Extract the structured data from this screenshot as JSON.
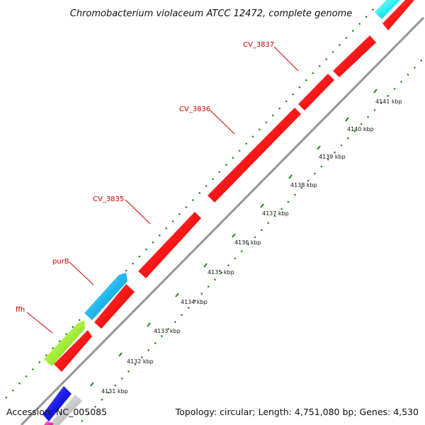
{
  "title": "Chromobacterium violaceum ATCC 12472, complete genome",
  "footer": {
    "accession": "Accession: NC_005085",
    "summary": "Topology: circular; Length: 4,751,080 bp; Genes: 4,530"
  },
  "colors": {
    "backbone": "#9a9a9a",
    "forward_ring": "#ff1a1a",
    "reverse_ring": "#22b8ee",
    "rna": "#a6ef3a",
    "bottom_blue": "#1a1aee",
    "bottom_grey": "#c8c8c8",
    "bottom_magenta": "#ff33cc",
    "cyan_top": "#22eeee",
    "gc_dots": "#1f8a1f",
    "tick": "#1f8a1f",
    "label": "#cc0000"
  },
  "scale_ticks_kbp": [
    "4131 kbp",
    "4132 kbp",
    "4133 kbp",
    "4134 kbp",
    "4135 kbp",
    "4136 kbp",
    "4137 kbp",
    "4138 kbp",
    "4139 kbp",
    "4140 kbp",
    "4141 kbp"
  ],
  "genes": [
    {
      "label": "ffh"
    },
    {
      "label": "purB"
    },
    {
      "label": "CV_3835"
    },
    {
      "label": "CV_3836"
    },
    {
      "label": "CV_3837"
    }
  ]
}
